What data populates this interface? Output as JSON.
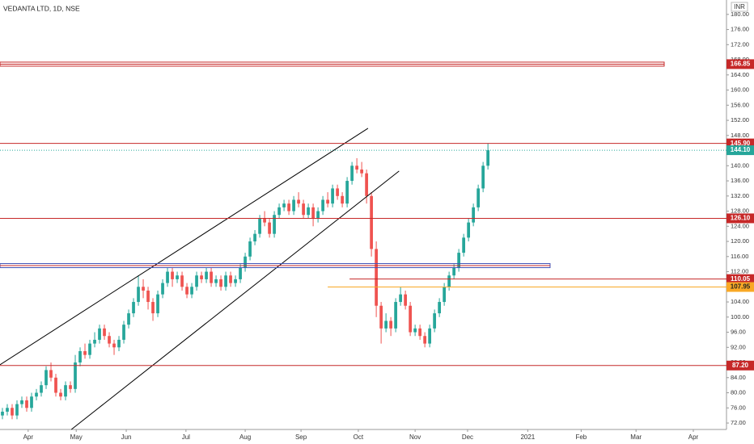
{
  "chart_data": {
    "type": "candlestick",
    "title": "VEDANTA LTD, 1D, NSE",
    "currency": "INR",
    "xlim": [
      -0.5,
      147.8
    ],
    "ylim": [
      70.3,
      183.8
    ],
    "xticks": [
      {
        "value": 5.3,
        "label": "Apr"
      },
      {
        "value": 15.2,
        "label": "May"
      },
      {
        "value": 25.5,
        "label": "Jun"
      },
      {
        "value": 37.8,
        "label": "Jul"
      },
      {
        "value": 50,
        "label": "Aug"
      },
      {
        "value": 61.5,
        "label": "Sep"
      },
      {
        "value": 73.3,
        "label": "Oct"
      },
      {
        "value": 85,
        "label": "Nov"
      },
      {
        "value": 95.8,
        "label": "Dec"
      },
      {
        "value": 108.2,
        "label": "2021"
      },
      {
        "value": 119.2,
        "label": "Feb"
      },
      {
        "value": 130.5,
        "label": "Mar"
      },
      {
        "value": 142.3,
        "label": "Apr"
      }
    ],
    "yticks": [
      {
        "value": 72,
        "label": "72.00"
      },
      {
        "value": 76,
        "label": "76.00"
      },
      {
        "value": 80,
        "label": "80.00"
      },
      {
        "value": 84,
        "label": "84.00"
      },
      {
        "value": 88,
        "label": "88.00"
      },
      {
        "value": 92,
        "label": "92.00"
      },
      {
        "value": 96,
        "label": "96.00"
      },
      {
        "value": 100,
        "label": "100.00"
      },
      {
        "value": 104,
        "label": "104.00"
      },
      {
        "value": 108,
        "label": "108.00"
      },
      {
        "value": 112,
        "label": "112.00"
      },
      {
        "value": 116,
        "label": "116.00"
      },
      {
        "value": 120,
        "label": "120.00"
      },
      {
        "value": 124,
        "label": "124.00"
      },
      {
        "value": 128,
        "label": "128.00"
      },
      {
        "value": 132,
        "label": "132.00"
      },
      {
        "value": 136,
        "label": "136.00"
      },
      {
        "value": 140,
        "label": "140.00"
      },
      {
        "value": 144,
        "label": "144.00"
      },
      {
        "value": 148,
        "label": "148.00"
      },
      {
        "value": 152,
        "label": "152.00"
      },
      {
        "value": 156,
        "label": "156.00"
      },
      {
        "value": 160,
        "label": "160.00"
      },
      {
        "value": 164,
        "label": "164.00"
      },
      {
        "value": 168,
        "label": "168.00"
      },
      {
        "value": 172,
        "label": "172.00"
      },
      {
        "value": 176,
        "label": "176.00"
      },
      {
        "value": 180,
        "label": "180.00"
      }
    ],
    "up_color": "#26a69a",
    "down_color": "#ef5350",
    "ohlc": [
      [
        74,
        76,
        73,
        75
      ],
      [
        75,
        77,
        74,
        76
      ],
      [
        76,
        77,
        73,
        74
      ],
      [
        74,
        78,
        73,
        77
      ],
      [
        77,
        79,
        76,
        78
      ],
      [
        78,
        79,
        75,
        76
      ],
      [
        76,
        80,
        75,
        79
      ],
      [
        79,
        81,
        78,
        80
      ],
      [
        80,
        83,
        79,
        82
      ],
      [
        82,
        87,
        81,
        86
      ],
      [
        86,
        88,
        83,
        84
      ],
      [
        84,
        85,
        79,
        80
      ],
      [
        80,
        81,
        78,
        79
      ],
      [
        79,
        83,
        78,
        82
      ],
      [
        82,
        83,
        80,
        81
      ],
      [
        81,
        90,
        80,
        88
      ],
      [
        88,
        92,
        87,
        91
      ],
      [
        91,
        93,
        89,
        90
      ],
      [
        90,
        94,
        89,
        93
      ],
      [
        93,
        96,
        92,
        94
      ],
      [
        94,
        98,
        93,
        97
      ],
      [
        97,
        98,
        94,
        95
      ],
      [
        95,
        96,
        92,
        93
      ],
      [
        93,
        94,
        90,
        92
      ],
      [
        92,
        95,
        91,
        94
      ],
      [
        94,
        99,
        93,
        98
      ],
      [
        98,
        102,
        97,
        101
      ],
      [
        101,
        105,
        100,
        104
      ],
      [
        104,
        111,
        103,
        108
      ],
      [
        108,
        110,
        105,
        107
      ],
      [
        107,
        108,
        102,
        104
      ],
      [
        104,
        105,
        99,
        101
      ],
      [
        101,
        107,
        100,
        106
      ],
      [
        106,
        110,
        105,
        109
      ],
      [
        109,
        113,
        108,
        112
      ],
      [
        112,
        113,
        108,
        110
      ],
      [
        110,
        112,
        109,
        111
      ],
      [
        111,
        112,
        107,
        108
      ],
      [
        108,
        109,
        105,
        106
      ],
      [
        106,
        109,
        105,
        108
      ],
      [
        108,
        112,
        107,
        111
      ],
      [
        111,
        112,
        109,
        110
      ],
      [
        110,
        113,
        109,
        112
      ],
      [
        112,
        113,
        108,
        109
      ],
      [
        109,
        111,
        108,
        110
      ],
      [
        110,
        111,
        107,
        108
      ],
      [
        108,
        112,
        107,
        111
      ],
      [
        111,
        112,
        108,
        109
      ],
      [
        109,
        111,
        108,
        110
      ],
      [
        110,
        114,
        109,
        113
      ],
      [
        113,
        117,
        112,
        116
      ],
      [
        116,
        121,
        115,
        120
      ],
      [
        120,
        123,
        119,
        122
      ],
      [
        122,
        127,
        121,
        126
      ],
      [
        126,
        128,
        124,
        125
      ],
      [
        125,
        126,
        121,
        122
      ],
      [
        122,
        128,
        121,
        127
      ],
      [
        127,
        130,
        126,
        129
      ],
      [
        129,
        131,
        128,
        130
      ],
      [
        130,
        131,
        127,
        128
      ],
      [
        128,
        132,
        127,
        131
      ],
      [
        131,
        133,
        129,
        130
      ],
      [
        130,
        131,
        126,
        127
      ],
      [
        127,
        130,
        126,
        129
      ],
      [
        129,
        130,
        124,
        126
      ],
      [
        126,
        129,
        125,
        128
      ],
      [
        128,
        132,
        127,
        131
      ],
      [
        131,
        133,
        129,
        130
      ],
      [
        130,
        135,
        129,
        134
      ],
      [
        134,
        135,
        131,
        132
      ],
      [
        132,
        133,
        129,
        130
      ],
      [
        130,
        137,
        129,
        136
      ],
      [
        136,
        141,
        135,
        140
      ],
      [
        140,
        142,
        138,
        139
      ],
      [
        139,
        141,
        137,
        138
      ],
      [
        138,
        139,
        130,
        132
      ],
      [
        132,
        133,
        116,
        118
      ],
      [
        118,
        120,
        100,
        103
      ],
      [
        103,
        104,
        93,
        97
      ],
      [
        97,
        101,
        96,
        99
      ],
      [
        99,
        100,
        95,
        97
      ],
      [
        97,
        105,
        96,
        104
      ],
      [
        104,
        108,
        103,
        106
      ],
      [
        106,
        107,
        102,
        103
      ],
      [
        103,
        104,
        95,
        96
      ],
      [
        96,
        98,
        95,
        97
      ],
      [
        97,
        98,
        94,
        95
      ],
      [
        95,
        96,
        92,
        93
      ],
      [
        93,
        98,
        92,
        97
      ],
      [
        97,
        102,
        96,
        101
      ],
      [
        101,
        105,
        100,
        104
      ],
      [
        104,
        109,
        103,
        108
      ],
      [
        108,
        112,
        107,
        111
      ],
      [
        111,
        114,
        110,
        113
      ],
      [
        113,
        118,
        112,
        117
      ],
      [
        117,
        122,
        116,
        121
      ],
      [
        121,
        126,
        120,
        125
      ],
      [
        125,
        130,
        124,
        129
      ],
      [
        129,
        135,
        128,
        134
      ],
      [
        134,
        141,
        133,
        140
      ],
      [
        140,
        145.9,
        139,
        144.1
      ]
    ],
    "trendlines": [
      {
        "x": [
          -0.5,
          75.3
        ],
        "y": [
          87.4,
          149.9
        ],
        "color": "#000000"
      },
      {
        "x": [
          14.2,
          81.7
        ],
        "y": [
          70.3,
          138.6
        ],
        "color": "#000000"
      }
    ],
    "zones": [
      {
        "price": 113.6,
        "end": 112.8,
        "color": "#3f51b5"
      }
    ],
    "levels": [
      {
        "price": 166.85,
        "color": "#c62828",
        "end": 136.3
      },
      {
        "price": {
          "value": 145.9,
          "label": "145.90"
        },
        "color": "#c62828"
      },
      {
        "price": {
          "value": 144.1,
          "label": "144.10"
        },
        "color": "#26a69a",
        "style": "dotted"
      },
      {
        "price": {
          "value": 126.1,
          "label": "126.10"
        },
        "color": "#c62828"
      },
      {
        "price": 110.05,
        "color": "#c62828",
        "start": 71.5
      },
      {
        "price": 107.95,
        "color": "#f9a825",
        "start": 67
      },
      {
        "price": {
          "value": 87.2,
          "label": "87.20"
        },
        "color": "#c62828"
      }
    ]
  }
}
